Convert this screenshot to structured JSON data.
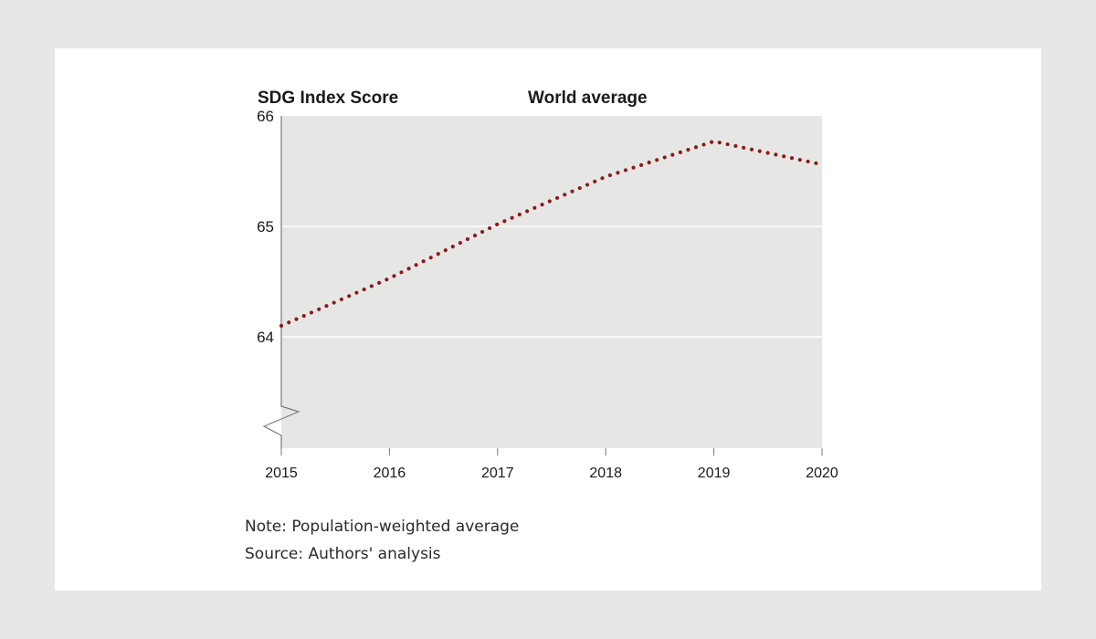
{
  "chart_data": {
    "type": "line",
    "style": "dotted",
    "ylabel": "SDG Index Score",
    "title": "World average",
    "xlabel": "",
    "x": [
      2015,
      2016,
      2017,
      2018,
      2019,
      2020
    ],
    "x_tick_labels": [
      "2015",
      "2016",
      "2017",
      "2018",
      "2019",
      "2020"
    ],
    "y_ticks": [
      64,
      65,
      66
    ],
    "y_tick_labels": [
      "64",
      "65",
      "66"
    ],
    "ylim": [
      63,
      66
    ],
    "axis_break": true,
    "series": [
      {
        "name": "World average",
        "values": [
          64.1,
          64.53,
          65.02,
          65.45,
          65.77,
          65.56
        ],
        "color": "#8b1a1a"
      }
    ],
    "grid": true
  },
  "notes": {
    "note": "Note: Population-weighted average",
    "source": "Source: Authors' analysis"
  },
  "colors": {
    "page_background": "#e7e8e6",
    "card_background": "#ffffff",
    "plot_background": "#e6e7e5",
    "gridline": "#ffffff",
    "line": "#8b1a1a",
    "axis": "#7a7a7a",
    "text": "#1a1a1a"
  }
}
